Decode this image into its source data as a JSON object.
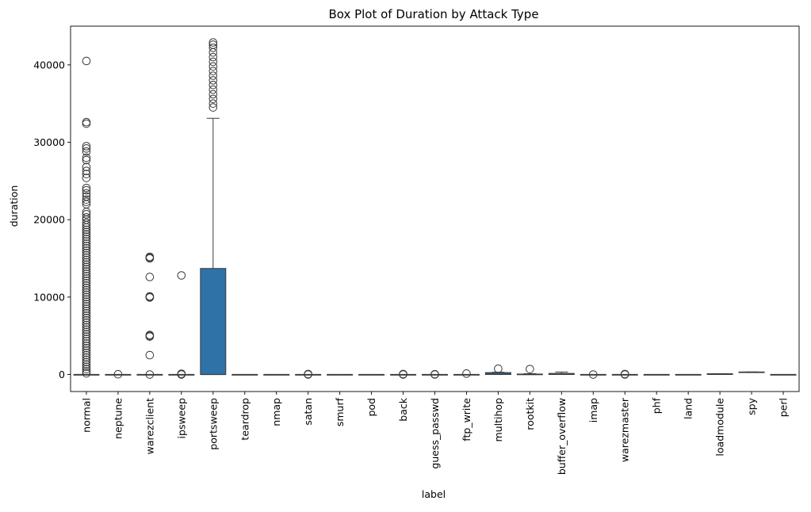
{
  "chart_data": {
    "type": "box",
    "title": "Box Plot of Duration by Attack Type",
    "xlabel": "label",
    "ylabel": "duration",
    "ylim": [
      -2200,
      45000
    ],
    "yticks": [
      0,
      10000,
      20000,
      30000,
      40000
    ],
    "grid": false,
    "colors": {
      "box": "#2f72a8",
      "line": "#3b3b3b",
      "background": "#ffffff"
    },
    "categories": [
      "normal",
      "neptune",
      "warezclient",
      "ipsweep",
      "portsweep",
      "teardrop",
      "nmap",
      "satan",
      "smurf",
      "pod",
      "back",
      "guess_passwd",
      "ftp_write",
      "multihop",
      "rootkit",
      "buffer_overflow",
      "imap",
      "warezmaster",
      "phf",
      "land",
      "loadmodule",
      "spy",
      "perl"
    ],
    "boxes": [
      {
        "label": "normal",
        "q1": 0,
        "median": 0,
        "q3": 0,
        "whisker_low": 0,
        "whisker_high": 0,
        "outliers": [
          40500,
          32600,
          32400,
          29500,
          29200,
          28800,
          28000,
          27700,
          26800,
          26300,
          25900,
          25400,
          24100,
          23800,
          23400,
          23000,
          22600,
          22300,
          22000,
          21000,
          20700,
          20300,
          20000,
          19600,
          19300,
          19000,
          18700,
          18400,
          18100,
          17800,
          17500,
          17200,
          16900,
          16600,
          16300,
          16000,
          15700,
          15400,
          15100,
          14800,
          14500,
          14200,
          13900,
          13600,
          13300,
          13000,
          12700,
          12400,
          12100,
          11800,
          11500,
          11200,
          10900,
          10600,
          10300,
          10000,
          9700,
          9400,
          9100,
          8800,
          8500,
          8200,
          7900,
          7600,
          7300,
          7000,
          6700,
          6400,
          6100,
          5800,
          5500,
          5200,
          4900,
          4600,
          4300,
          4000,
          3700,
          3400,
          3100,
          2800,
          2500,
          2200,
          1900,
          1600,
          1300,
          1000,
          700,
          400,
          150
        ]
      },
      {
        "label": "neptune",
        "q1": 0,
        "median": 0,
        "q3": 0,
        "whisker_low": 0,
        "whisker_high": 0,
        "outliers": [
          30
        ]
      },
      {
        "label": "warezclient",
        "q1": 0,
        "median": 0,
        "q3": 0,
        "whisker_low": 0,
        "whisker_high": 0,
        "outliers": [
          15200,
          15100,
          15000,
          12600,
          10100,
          10000,
          9950,
          5100,
          5000,
          4900,
          2500,
          0
        ]
      },
      {
        "label": "ipsweep",
        "q1": 0,
        "median": 0,
        "q3": 0,
        "whisker_low": 0,
        "whisker_high": 0,
        "outliers": [
          12800,
          100,
          0
        ]
      },
      {
        "label": "portsweep",
        "q1": 0,
        "median": 0,
        "q3": 13700,
        "whisker_low": 0,
        "whisker_high": 33100,
        "outliers": [
          35000,
          35600,
          36200,
          36800,
          37400,
          38000,
          38600,
          39200,
          39800,
          40400,
          41000,
          41600,
          42200,
          42600,
          42900,
          34500
        ]
      },
      {
        "label": "teardrop",
        "q1": 0,
        "median": 0,
        "q3": 0,
        "whisker_low": 0,
        "whisker_high": 0,
        "outliers": []
      },
      {
        "label": "nmap",
        "q1": 0,
        "median": 0,
        "q3": 0,
        "whisker_low": 0,
        "whisker_high": 0,
        "outliers": []
      },
      {
        "label": "satan",
        "q1": 0,
        "median": 0,
        "q3": 0,
        "whisker_low": 0,
        "whisker_high": 0,
        "outliers": [
          60,
          0
        ]
      },
      {
        "label": "smurf",
        "q1": 0,
        "median": 0,
        "q3": 0,
        "whisker_low": 0,
        "whisker_high": 0,
        "outliers": []
      },
      {
        "label": "pod",
        "q1": 0,
        "median": 0,
        "q3": 0,
        "whisker_low": 0,
        "whisker_high": 0,
        "outliers": []
      },
      {
        "label": "back",
        "q1": 0,
        "median": 0,
        "q3": 0,
        "whisker_low": 0,
        "whisker_high": 0,
        "outliers": [
          60,
          0
        ]
      },
      {
        "label": "guess_passwd",
        "q1": 0,
        "median": 0,
        "q3": 0,
        "whisker_low": 0,
        "whisker_high": 0,
        "outliers": [
          40,
          0
        ]
      },
      {
        "label": "ftp_write",
        "q1": 0,
        "median": 0,
        "q3": 0,
        "whisker_low": 0,
        "whisker_high": 0,
        "outliers": [
          120
        ]
      },
      {
        "label": "multihop",
        "q1": 0,
        "median": 50,
        "q3": 250,
        "whisker_low": 0,
        "whisker_high": 300,
        "outliers": [
          750
        ]
      },
      {
        "label": "rootkit",
        "q1": 0,
        "median": 0,
        "q3": 60,
        "whisker_low": 0,
        "whisker_high": 100,
        "outliers": [
          700
        ]
      },
      {
        "label": "buffer_overflow",
        "q1": 0,
        "median": 60,
        "q3": 140,
        "whisker_low": 0,
        "whisker_high": 320,
        "outliers": []
      },
      {
        "label": "imap",
        "q1": 0,
        "median": 0,
        "q3": 0,
        "whisker_low": 0,
        "whisker_high": 0,
        "outliers": [
          0
        ]
      },
      {
        "label": "warezmaster",
        "q1": 0,
        "median": 0,
        "q3": 0,
        "whisker_low": 0,
        "whisker_high": 0,
        "outliers": [
          60,
          0
        ]
      },
      {
        "label": "phf",
        "q1": 0,
        "median": 0,
        "q3": 0,
        "whisker_low": 0,
        "whisker_high": 0,
        "outliers": []
      },
      {
        "label": "land",
        "q1": 0,
        "median": 0,
        "q3": 0,
        "whisker_low": 0,
        "whisker_high": 0,
        "outliers": []
      },
      {
        "label": "loadmodule",
        "q1": 0,
        "median": 50,
        "q3": 100,
        "whisker_low": 0,
        "whisker_high": 100,
        "outliers": []
      },
      {
        "label": "spy",
        "q1": 280,
        "median": 300,
        "q3": 330,
        "whisker_low": 280,
        "whisker_high": 330,
        "outliers": []
      },
      {
        "label": "perl",
        "q1": 0,
        "median": 0,
        "q3": 0,
        "whisker_low": 0,
        "whisker_high": 0,
        "outliers": []
      }
    ]
  }
}
